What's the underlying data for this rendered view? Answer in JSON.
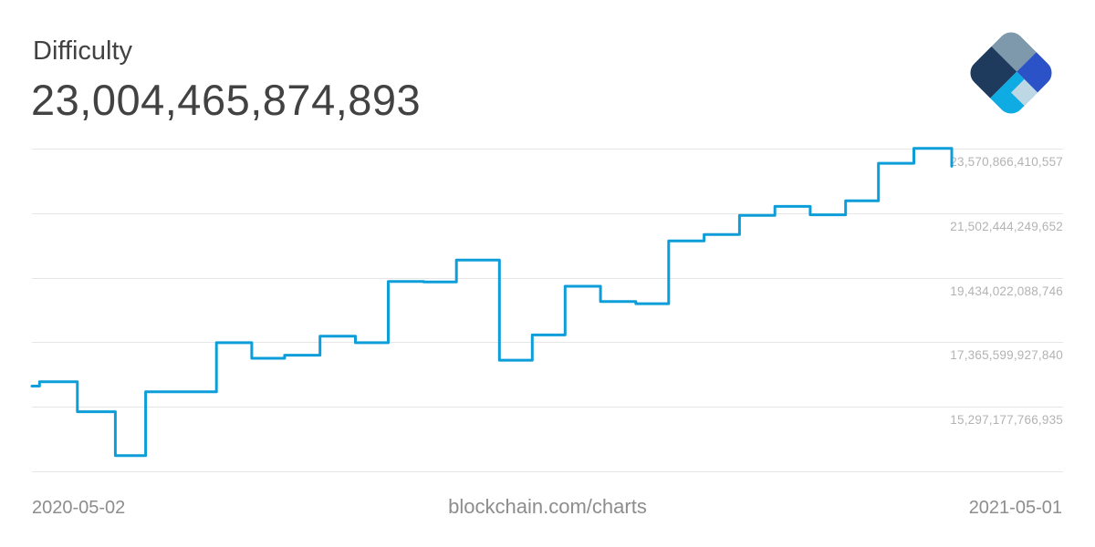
{
  "header": {
    "title": "Difficulty",
    "value": "23,004,465,874,893"
  },
  "footer": {
    "start_date": "2020-05-02",
    "site_label": "blockchain.com/charts",
    "end_date": "2021-05-01"
  },
  "colors": {
    "title": "#424242",
    "tick_label": "#b3b3b3",
    "date_label": "#8d8d8d",
    "grid": "#e6e6e6",
    "line": "#0d9ed9"
  },
  "logo": {
    "colors": {
      "slate": "#7e98ac",
      "royal": "#2b53c7",
      "navy": "#1e3a5c",
      "cyan": "#0fabe3",
      "pale": "#bdd7e5"
    }
  },
  "chart_data": {
    "type": "line",
    "title": "Difficulty",
    "subtitle_current_value": "23,004,465,874,893",
    "line_style": "step-after",
    "line_color": "#0d9ed9",
    "grid": "horizontal",
    "legend": "none",
    "xlabel": "",
    "ylabel": "",
    "x_range": [
      "2020-05-02",
      "2021-05-01"
    ],
    "x_tick_labels": [
      "2020-05-02",
      "2021-05-01"
    ],
    "ylim": [
      13228755606030,
      23570866410557
    ],
    "y_gridline_values": [
      23570866410557,
      21502444249652,
      19434022088746,
      17365599927840,
      15297177766935,
      13228755606030
    ],
    "y_tick_labels": [
      "23,570,866,410,557",
      "21,502,444,249,652",
      "19,434,022,088,746",
      "17,365,599,927,840",
      "15,297,177,766,935"
    ],
    "series": [
      {
        "name": "Difficulty",
        "x": [
          "2020-05-02",
          "2020-05-05",
          "2020-05-20",
          "2020-06-04",
          "2020-06-16",
          "2020-07-01",
          "2020-07-14",
          "2020-07-28",
          "2020-08-10",
          "2020-08-24",
          "2020-09-07",
          "2020-09-20",
          "2020-10-04",
          "2020-10-17",
          "2020-11-03",
          "2020-11-16",
          "2020-11-29",
          "2020-12-13",
          "2020-12-27",
          "2021-01-09",
          "2021-01-23",
          "2021-02-06",
          "2021-02-20",
          "2021-03-06",
          "2021-03-20",
          "2021-04-02",
          "2021-04-16",
          "2021-05-01"
        ],
        "values": [
          15960000000000,
          16100000000000,
          15140000000000,
          13730000000000,
          15780000000000,
          15780000000000,
          17350000000000,
          16850000000000,
          16950000000000,
          17560000000000,
          17350000000000,
          19310000000000,
          19300000000000,
          20000000000000,
          16790000000000,
          17600000000000,
          19160000000000,
          18670000000000,
          18600000000000,
          20610000000000,
          20820000000000,
          21430000000000,
          21720000000000,
          21450000000000,
          21900000000000,
          23100000000000,
          23580000000000,
          23004465874893
        ]
      }
    ]
  }
}
